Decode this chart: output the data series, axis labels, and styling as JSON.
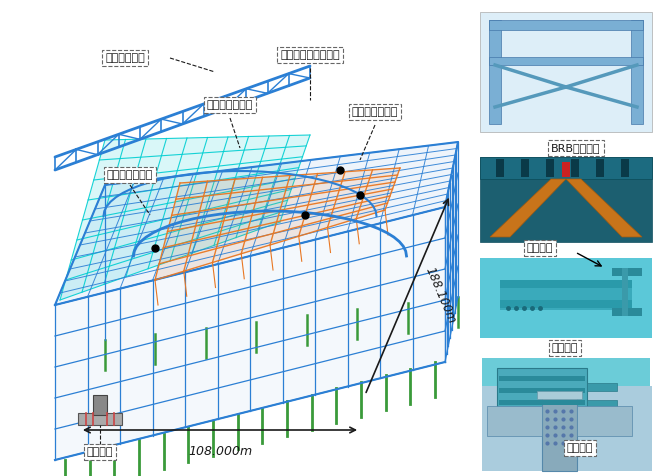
{
  "bg_color": "#ffffff",
  "fig_width": 6.59,
  "fig_height": 4.76,
  "dpi": 100,
  "labels": {
    "roof_truss": "屋面桁架结构",
    "basketball": "篮球训练馆馆钢结构",
    "badminton": "羽毛球馆钢结构",
    "swimming": "游泳馆馆钢结构",
    "roof_stand": "屋面看台钢结构",
    "dim_108": "108.000m",
    "dim_188": "188.100m",
    "column_base": "柱脚节点",
    "brb": "BRB屈曲支撑",
    "truss_node": "桁架节点",
    "beam_node": "梁梁节点",
    "column_beam": "梁柱节点"
  },
  "colors": {
    "blue": "#2B7FD4",
    "cyan": "#00CED1",
    "orange": "#E87722",
    "green": "#3A9A3A",
    "dark": "#1a1a1a",
    "label_bg": "#ffffff",
    "label_border": "#666666",
    "steel_blue": "#5B9BD5",
    "brb_orange": "#C8741A",
    "brb_teal": "#1C6B7A",
    "node_teal": "#4BB8C8",
    "node_dark": "#2A8A9A"
  }
}
